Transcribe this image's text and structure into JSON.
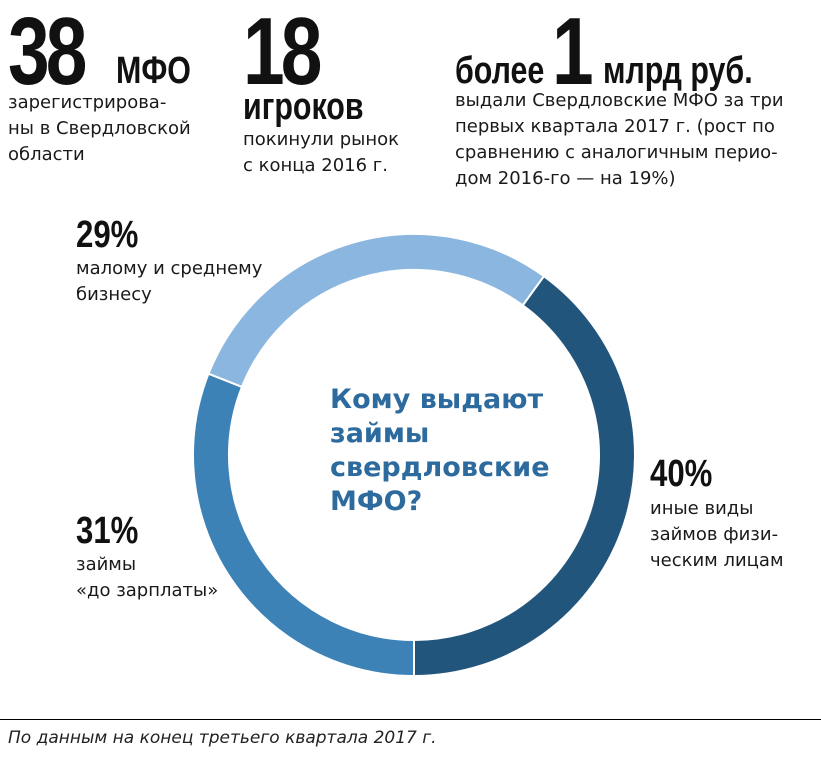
{
  "facts": [
    {
      "number": "38",
      "unit": "МФО",
      "text": "зарегистрирова-\nны в Свердловской\nобласти"
    },
    {
      "number": "18",
      "unit": "игроков",
      "text": "покинули рынок\nс конца 2016 г."
    },
    {
      "prefix": "более",
      "number": "1",
      "unit": "млрд руб.",
      "text": "выдали Свердловские МФО за три\nпервых квартала 2017 г. (рост по\nсравнению с аналогичным перио-\nдом 2016-го — на 19%)"
    }
  ],
  "chart_data": {
    "type": "pie",
    "title": "Кому выдают\nзаймы\nсвердловские\nМФО?",
    "slices": [
      {
        "pct_label": "40%",
        "label": "иные виды\nзаймов физи-\nческим лицам",
        "value": 40,
        "color": "#22557c"
      },
      {
        "pct_label": "31%",
        "label": "займы\n«до зарплаты»",
        "value": 31,
        "color": "#3d82b6"
      },
      {
        "pct_label": "29%",
        "label": "малому и среднему\nбизнесу",
        "value": 29,
        "color": "#8bb6df"
      }
    ]
  },
  "footnote": "По данным на конец третьего квартала 2017 г."
}
